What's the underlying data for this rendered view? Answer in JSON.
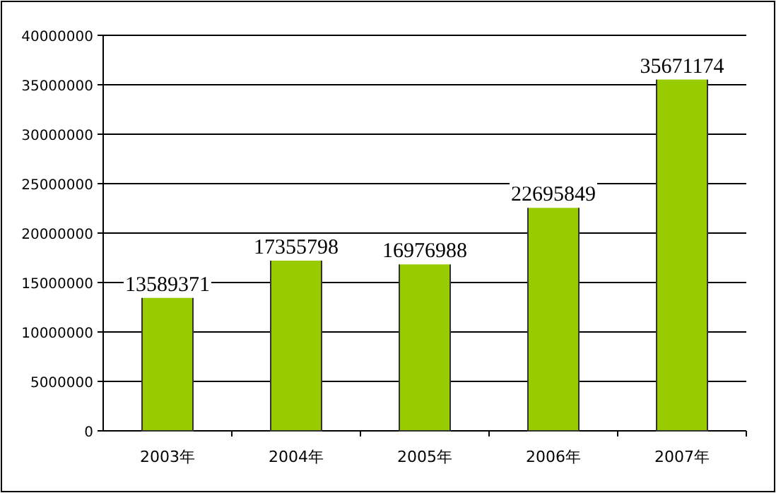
{
  "chart_data": {
    "type": "bar",
    "categories": [
      "2003年",
      "2004年",
      "2005年",
      "2006年",
      "2007年"
    ],
    "values": [
      13589371,
      17355798,
      16976988,
      22695849,
      35671174
    ],
    "color": "#99cc00",
    "ylim": [
      0,
      40000000
    ],
    "yticks": [
      0,
      5000000,
      10000000,
      15000000,
      20000000,
      25000000,
      30000000,
      35000000,
      40000000
    ],
    "grid": "y",
    "data_labels": true
  }
}
